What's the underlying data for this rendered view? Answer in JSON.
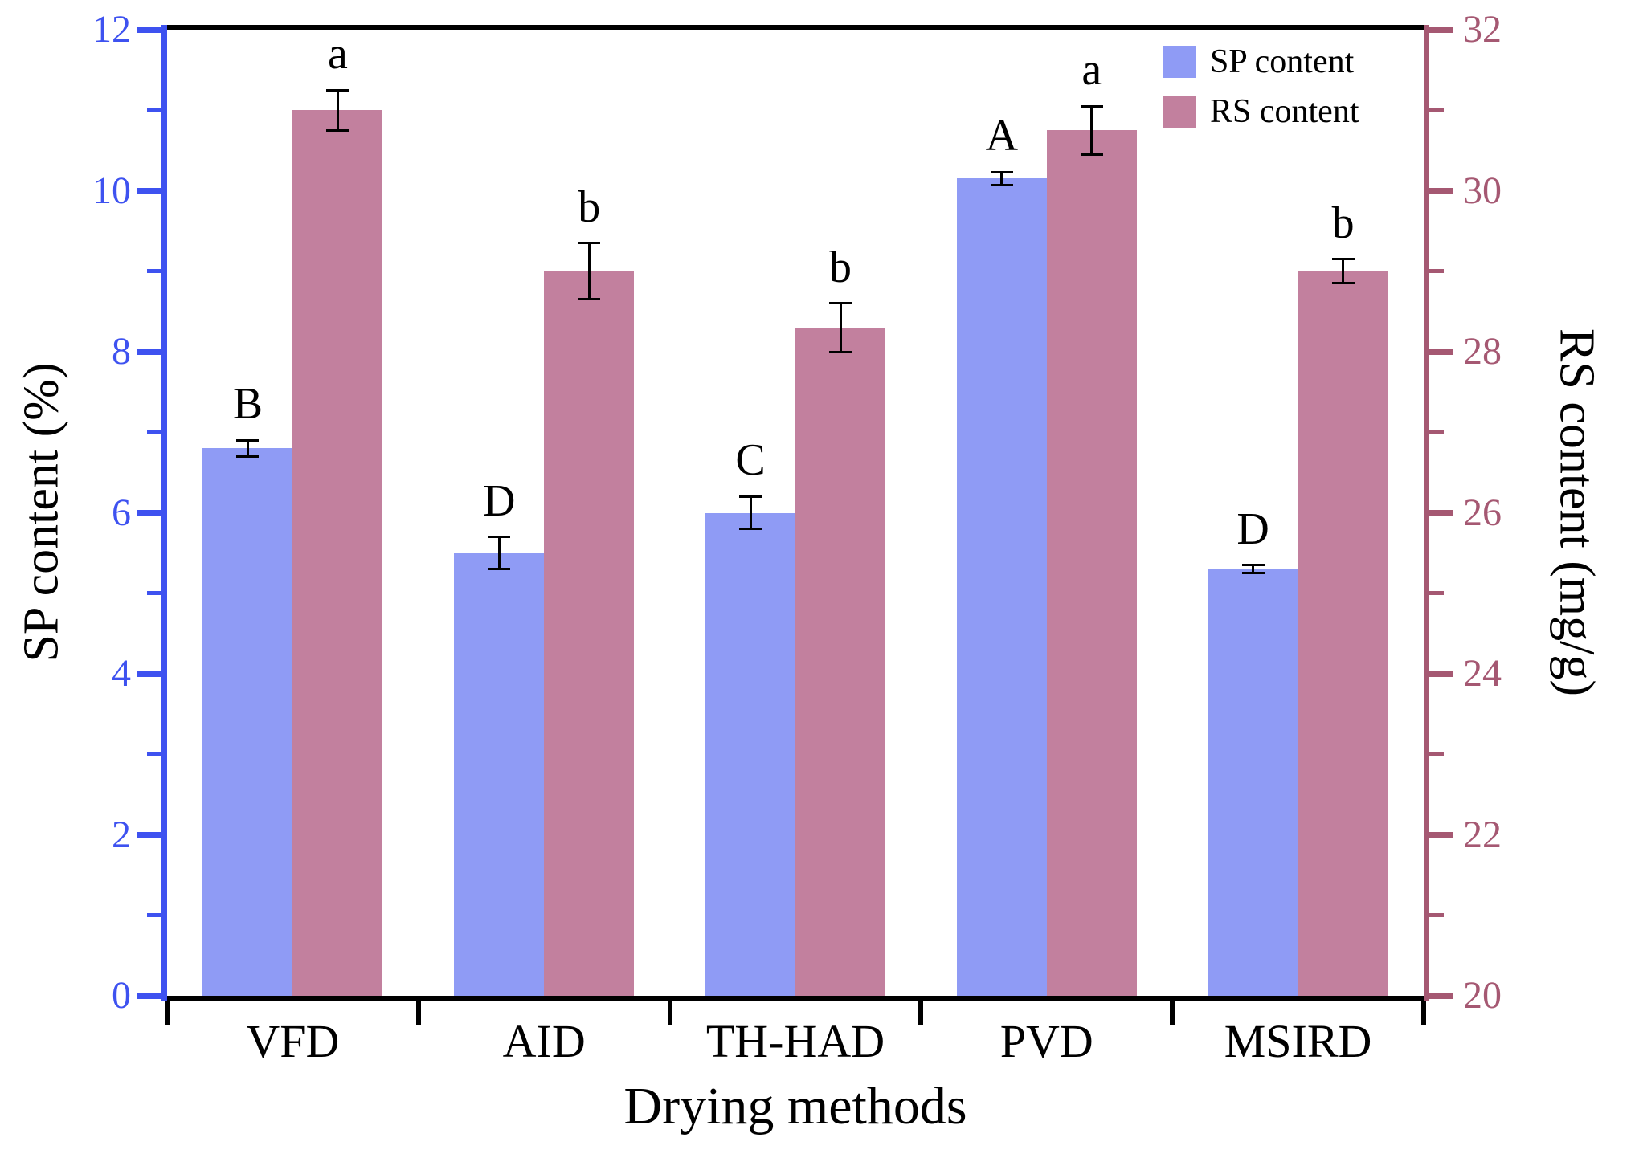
{
  "chart_data": {
    "type": "bar",
    "title": "",
    "categories": [
      "VFD",
      "AID",
      "TH-HAD",
      "PVD",
      "MSIRD"
    ],
    "series": [
      {
        "name": "SP content",
        "axis": "left",
        "color": "#8F9BF5",
        "values": [
          6.8,
          5.5,
          6.0,
          10.15,
          5.3
        ],
        "errors": [
          0.1,
          0.2,
          0.2,
          0.08,
          0.05
        ],
        "sig_letters": [
          "B",
          "D",
          "C",
          "A",
          "D"
        ]
      },
      {
        "name": "RS content",
        "axis": "right",
        "color": "#C2809E",
        "values": [
          31.0,
          29.0,
          28.3,
          30.75,
          29.0
        ],
        "errors": [
          0.25,
          0.35,
          0.3,
          0.3,
          0.15
        ],
        "sig_letters": [
          "a",
          "b",
          "b",
          "a",
          "b"
        ]
      }
    ],
    "xlabel": "Drying methods",
    "left_axis": {
      "label": "SP content (%)",
      "min": 0,
      "max": 12,
      "major_ticks": [
        0,
        2,
        4,
        6,
        8,
        10,
        12
      ],
      "minor_ticks": [
        1,
        3,
        5,
        7,
        9,
        11
      ],
      "color": "#3E52F0"
    },
    "right_axis": {
      "label": "RS content (mg/g)",
      "min": 20,
      "max": 32,
      "major_ticks": [
        20,
        22,
        24,
        26,
        28,
        30,
        32
      ],
      "minor_ticks": [
        21,
        23,
        25,
        27,
        29,
        31
      ],
      "color": "#A55872"
    },
    "grid": false,
    "legend_position": "top-right",
    "error_bar_color": "#000000",
    "frame_color": "#000000"
  }
}
